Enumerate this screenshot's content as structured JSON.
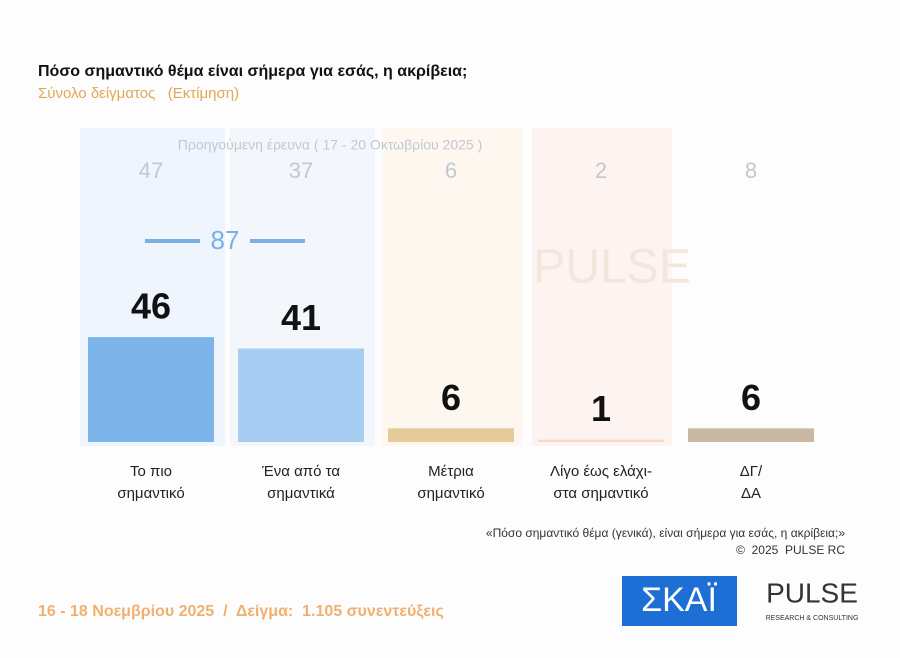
{
  "chart_data": {
    "type": "bar",
    "title": "Πόσο σημαντικό θέμα είναι σήμερα για εσάς, η ακρίβεια;",
    "subtitle": "Σύνολο δείγματος   (Εκτίμηση)",
    "categories": [
      [
        "Το πιο",
        "σημαντικό"
      ],
      [
        "Ένα από τα",
        "σημαντικά"
      ],
      [
        "Μέτρια",
        "σημαντικό"
      ],
      [
        "Λίγο έως ελάχι-",
        "στα σημαντικό"
      ],
      [
        "ΔΓ/",
        "ΔΑ"
      ]
    ],
    "values": [
      46,
      41,
      6,
      1,
      6
    ],
    "colors": [
      "#7db5ea",
      "#a8cdf2",
      "#e3cc9a",
      "#f0dcc2",
      "#c8b8a4"
    ],
    "previous": {
      "name": "Προηγούμενη έρευνα ( 17 - 20 Οκτωβρίου 2025 )",
      "values": [
        47,
        37,
        6,
        2,
        8
      ]
    },
    "combined": 87,
    "note": "«Πόσο σημαντικό θέμα (γενικά), είναι σήμερα για εσάς, η ακρίβεια;»",
    "copyright": "©  2025  PULSE RC",
    "footer": "16 - 18 Νοεμβρίου 2025  /  Δείγμα:  1.105 συνεντεύξεις",
    "logos": {
      "channel": "ΣΚΑΪ",
      "pulse": "PULSE",
      "pulse_sub": "RESEARCH & CONSULTING"
    }
  }
}
